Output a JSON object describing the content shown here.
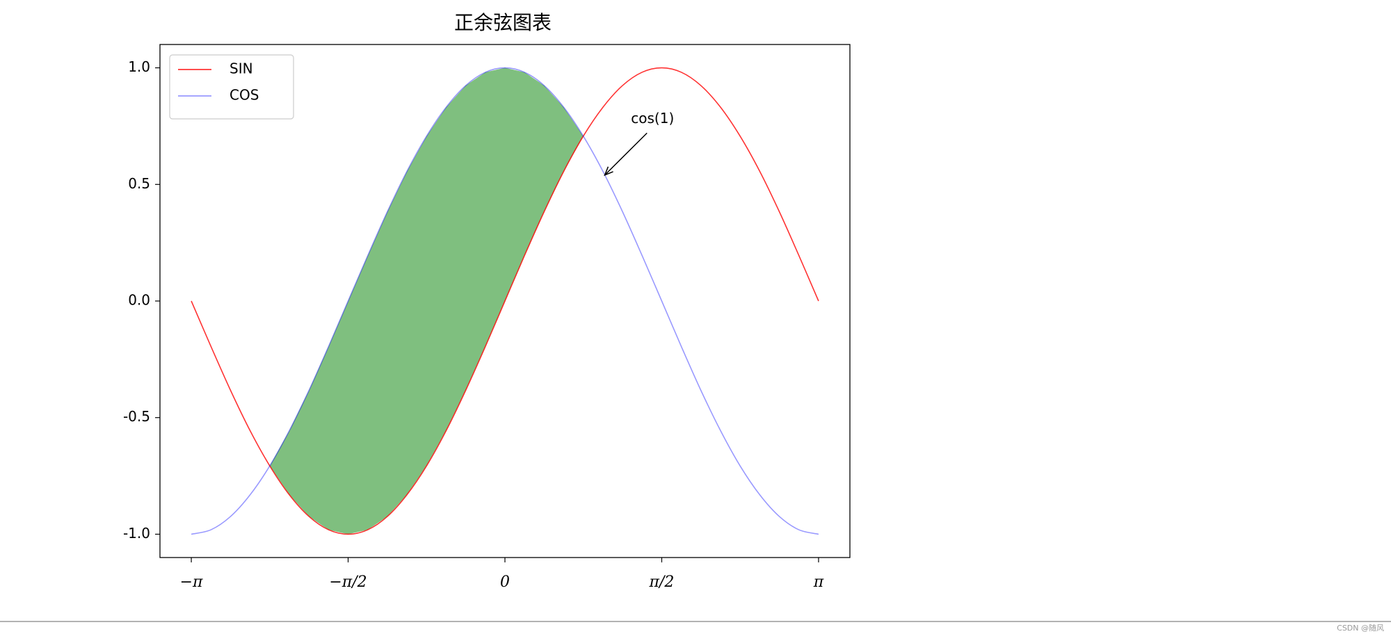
{
  "chart_data": {
    "type": "line",
    "title": "正余弦图表",
    "x": [
      -3.142,
      -2.945,
      -2.749,
      -2.553,
      -2.356,
      -2.16,
      -1.963,
      -1.767,
      -1.571,
      -1.374,
      -1.178,
      -0.982,
      -0.785,
      -0.589,
      -0.393,
      -0.196,
      0,
      0.196,
      0.393,
      0.589,
      0.785,
      0.982,
      1.178,
      1.374,
      1.571,
      1.767,
      1.963,
      2.16,
      2.356,
      2.553,
      2.749,
      2.945,
      3.142
    ],
    "series": [
      {
        "name": "SIN",
        "color": "red",
        "alpha": 0.8,
        "values": [
          0,
          -0.195,
          -0.383,
          -0.556,
          -0.707,
          -0.831,
          -0.924,
          -0.981,
          -1,
          -0.981,
          -0.924,
          -0.831,
          -0.707,
          -0.556,
          -0.383,
          -0.195,
          0,
          0.195,
          0.383,
          0.556,
          0.707,
          0.831,
          0.924,
          0.981,
          1,
          0.981,
          0.924,
          0.831,
          0.707,
          0.556,
          0.383,
          0.195,
          0
        ]
      },
      {
        "name": "COS",
        "color": "blue",
        "alpha": 0.4,
        "values": [
          -1,
          -0.981,
          -0.924,
          -0.831,
          -0.707,
          -0.556,
          -0.383,
          -0.195,
          0,
          0.195,
          0.383,
          0.556,
          0.707,
          0.831,
          0.924,
          0.981,
          1,
          0.981,
          0.924,
          0.831,
          0.707,
          0.556,
          0.383,
          0.195,
          0,
          -0.195,
          -0.383,
          -0.556,
          -0.707,
          -0.831,
          -0.924,
          -0.981,
          -1
        ]
      }
    ],
    "fill_between": {
      "color": "green",
      "alpha": 0.5
    },
    "xlim": [
      -3.456,
      3.456
    ],
    "ylim": [
      -1.1,
      1.1
    ],
    "xticks": [
      {
        "value": -3.142,
        "label": "−π"
      },
      {
        "value": -1.571,
        "label": "−π/2"
      },
      0,
      {
        "value": 1.571,
        "label": "π/2"
      },
      {
        "value": 3.142,
        "label": "π"
      }
    ],
    "yticks": [
      {
        "value": -1,
        "label": "-1.0"
      },
      {
        "value": -0.5,
        "label": "-0.5"
      },
      {
        "value": 0,
        "label": "0.0"
      },
      {
        "value": 0.5,
        "label": "0.5"
      },
      {
        "value": 1,
        "label": "1.0"
      }
    ],
    "annotation": {
      "text": "cos(1)",
      "xy": [
        1,
        0.54
      ],
      "xytext": [
        1.27,
        0.78
      ]
    },
    "legend": "upper left",
    "grid": false
  },
  "watermark": "CSDN @随风"
}
